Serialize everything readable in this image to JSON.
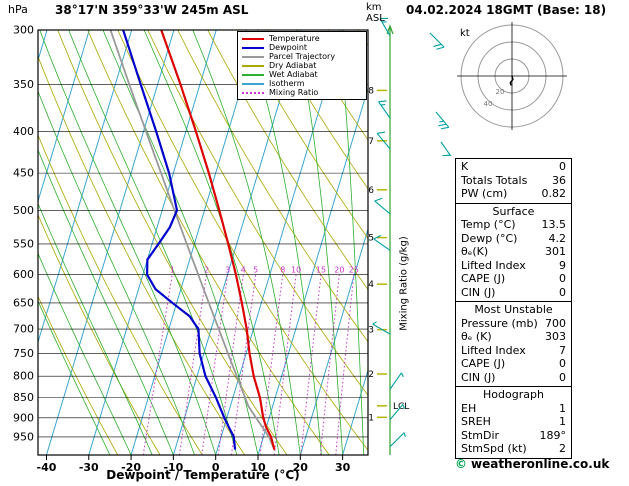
{
  "header": {
    "location": "38°17'N 359°33'W 245m ASL",
    "datetime": "04.02.2024 18GMT (Base: 18)"
  },
  "axes": {
    "pressure_unit": "hPa",
    "km_unit": "km",
    "asl_unit": "ASL",
    "pressure_ticks": [
      300,
      350,
      400,
      450,
      500,
      550,
      600,
      650,
      700,
      750,
      800,
      850,
      900,
      950
    ],
    "km_ticks": [
      1,
      2,
      3,
      4,
      5,
      6,
      7,
      8
    ],
    "x_ticks": [
      -40,
      -30,
      -20,
      -10,
      0,
      10,
      20,
      30
    ],
    "x_label": "Dewpoint / Temperature (°C)",
    "mixing_axis_label": "Mixing Ratio (g/kg)",
    "lcl_label": "LCL"
  },
  "colors": {
    "temperature": "#dd0000",
    "dewpoint": "#0000cc",
    "parcel": "#999999",
    "dry_adiabat": "#a8a800",
    "wet_adiabat": "#2db02d",
    "isotherm": "#3aa6d0",
    "mixing_ratio": "#cc33cc",
    "grid": "#000000",
    "staff": "#30a030",
    "barb": "#00a0a0",
    "km_dash": "#b8b400",
    "copyright": "#00a050",
    "hodo_ring": "#999999"
  },
  "legend": {
    "items": [
      {
        "label": "Temperature",
        "color": "#dd0000",
        "style": "solid"
      },
      {
        "label": "Dewpoint",
        "color": "#0000cc",
        "style": "solid"
      },
      {
        "label": "Parcel Trajectory",
        "color": "#999999",
        "style": "solid"
      },
      {
        "label": "Dry Adiabat",
        "color": "#a8a800",
        "style": "solid"
      },
      {
        "label": "Wet Adiabat",
        "color": "#2db02d",
        "style": "solid"
      },
      {
        "label": "Isotherm",
        "color": "#3aa6d0",
        "style": "solid"
      },
      {
        "label": "Mixing Ratio",
        "color": "#cc33cc",
        "style": "dotted"
      }
    ]
  },
  "chart_data": {
    "type": "skewt-log-p",
    "pressure_range_hpa": [
      300,
      1000
    ],
    "surface_temp_axis_c": [
      -42,
      36
    ],
    "skew": 0.3,
    "isotherms_c": {
      "from": -90,
      "to": 40,
      "step": 10
    },
    "dry_adiabats_theta_k": {
      "from": 250,
      "to": 400,
      "step": 10
    },
    "wet_adiabats_start_c": {
      "from": -25,
      "to": 40,
      "step": 5
    },
    "mixing_ratio_lines_gkg": [
      1,
      2,
      3,
      4,
      5,
      8,
      10,
      15,
      20,
      25
    ],
    "mixing_ratio_label_hpa": 600,
    "lcl_hpa": 870,
    "series": {
      "temperature_c": [
        [
          985,
          13.5
        ],
        [
          950,
          11.8
        ],
        [
          925,
          10.0
        ],
        [
          900,
          8.6
        ],
        [
          850,
          6.4
        ],
        [
          800,
          3.4
        ],
        [
          750,
          0.8
        ],
        [
          700,
          -1.6
        ],
        [
          650,
          -4.6
        ],
        [
          600,
          -8.0
        ],
        [
          550,
          -12.0
        ],
        [
          500,
          -16.5
        ],
        [
          450,
          -21.6
        ],
        [
          400,
          -27.6
        ],
        [
          350,
          -34.6
        ],
        [
          300,
          -43.0
        ]
      ],
      "dewpoint_c": [
        [
          985,
          4.2
        ],
        [
          950,
          3.0
        ],
        [
          925,
          1.2
        ],
        [
          900,
          -0.6
        ],
        [
          850,
          -4.0
        ],
        [
          800,
          -8.0
        ],
        [
          750,
          -11.0
        ],
        [
          700,
          -13.0
        ],
        [
          675,
          -16.0
        ],
        [
          650,
          -21.0
        ],
        [
          625,
          -26.0
        ],
        [
          600,
          -29.0
        ],
        [
          575,
          -30.0
        ],
        [
          550,
          -28.5
        ],
        [
          525,
          -27.0
        ],
        [
          500,
          -26.5
        ],
        [
          450,
          -31.0
        ],
        [
          400,
          -37.0
        ],
        [
          350,
          -44.0
        ],
        [
          300,
          -52.0
        ]
      ],
      "parcel_c": [
        [
          985,
          13.5
        ],
        [
          950,
          11.3
        ],
        [
          900,
          6.9
        ],
        [
          870,
          4.2
        ],
        [
          850,
          2.9
        ],
        [
          800,
          -0.6
        ],
        [
          750,
          -4.3
        ],
        [
          700,
          -8.2
        ],
        [
          650,
          -12.4
        ],
        [
          600,
          -16.9
        ],
        [
          550,
          -21.8
        ],
        [
          500,
          -27.1
        ],
        [
          450,
          -32.9
        ],
        [
          400,
          -39.4
        ],
        [
          350,
          -46.7
        ],
        [
          300,
          -55.0
        ]
      ]
    },
    "wind_barbs": [
      {
        "p": 977,
        "dir": 45,
        "spd": 5
      },
      {
        "p": 905,
        "dir": 40,
        "spd": 5
      },
      {
        "p": 830,
        "dir": 35,
        "spd": 5
      },
      {
        "p": 710,
        "dir": 300,
        "spd": 5
      },
      {
        "p": 560,
        "dir": 305,
        "spd": 10
      },
      {
        "p": 505,
        "dir": 310,
        "spd": 10
      },
      {
        "p": 420,
        "dir": 320,
        "spd": 10
      },
      {
        "p": 385,
        "dir": 325,
        "spd": 15
      },
      {
        "p": 305,
        "dir": 330,
        "spd": 15
      }
    ],
    "upper_barbs": [
      {
        "dir": 135,
        "spd": 20
      },
      {
        "dir": 140,
        "spd": 25
      },
      {
        "dir": 145,
        "spd": 20
      }
    ]
  },
  "hodograph": {
    "unit": "kt",
    "rings_kt": [
      20,
      40,
      60
    ],
    "ring_labels": [
      "20",
      "40"
    ],
    "trace_kt": [
      [
        0,
        0
      ],
      [
        1,
        -4
      ],
      [
        -2,
        -8
      ],
      [
        -1,
        -11
      ]
    ]
  },
  "panels": [
    {
      "title": "",
      "rows": [
        {
          "label": "K",
          "value": "0"
        },
        {
          "label": "Totals Totals",
          "value": "36"
        },
        {
          "label": "PW (cm)",
          "value": "0.82"
        }
      ]
    },
    {
      "title": "Surface",
      "rows": [
        {
          "label": "Temp (°C)",
          "value": "13.5"
        },
        {
          "label": "Dewp (°C)",
          "value": "4.2"
        },
        {
          "label": "θₑ(K)",
          "value": "301"
        },
        {
          "label": "Lifted Index",
          "value": "9"
        },
        {
          "label": "CAPE (J)",
          "value": "0"
        },
        {
          "label": "CIN (J)",
          "value": "0"
        }
      ]
    },
    {
      "title": "Most Unstable",
      "rows": [
        {
          "label": "Pressure (mb)",
          "value": "700"
        },
        {
          "label": "θₑ (K)",
          "value": "303"
        },
        {
          "label": "Lifted Index",
          "value": "7"
        },
        {
          "label": "CAPE (J)",
          "value": "0"
        },
        {
          "label": "CIN (J)",
          "value": "0"
        }
      ]
    },
    {
      "title": "Hodograph",
      "rows": [
        {
          "label": "EH",
          "value": "1"
        },
        {
          "label": "SREH",
          "value": "1"
        },
        {
          "label": "StmDir",
          "value": "189°"
        },
        {
          "label": "StmSpd (kt)",
          "value": "2"
        }
      ]
    }
  ],
  "footer": {
    "copyright_symbol": "©",
    "site": "weatheronline.co.uk"
  }
}
